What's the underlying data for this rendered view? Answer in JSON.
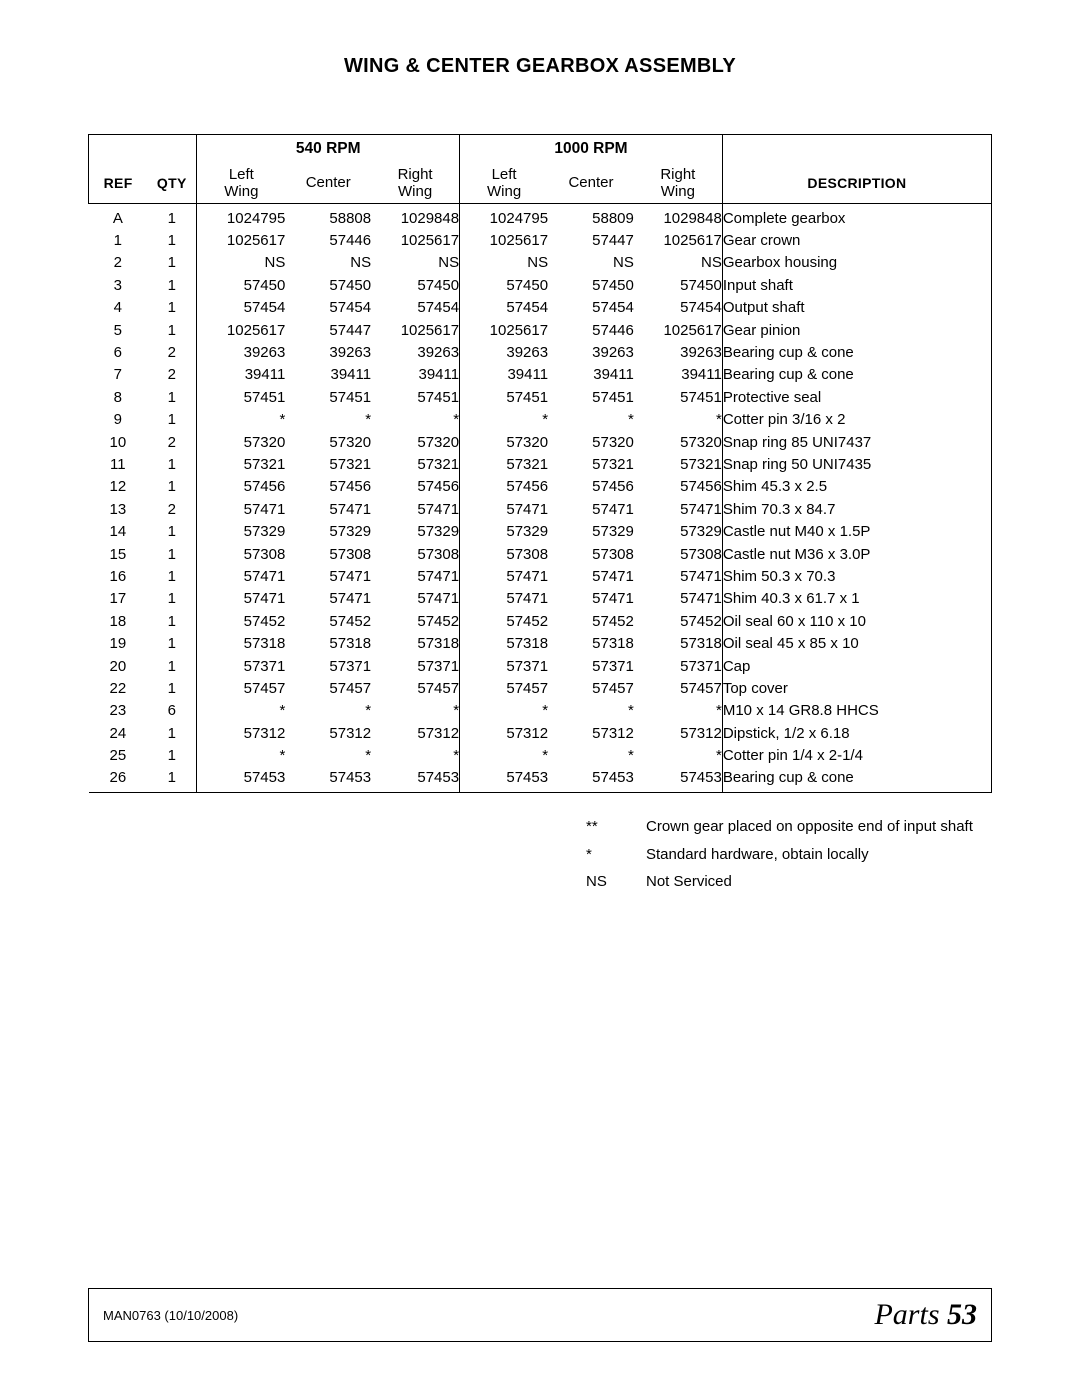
{
  "title": "WING & CENTER GEARBOX ASSEMBLY",
  "header": {
    "rpm540": "540 RPM",
    "rpm1000": "1000 RPM",
    "ref": "REF",
    "qty": "QTY",
    "leftWing": "Left\nWing",
    "center": "Center",
    "rightWing": "Right\nWing",
    "description": "DESCRIPTION"
  },
  "rows": [
    {
      "ref": "A",
      "qty": "1",
      "lw1": "1024795",
      "c1": "58808",
      "rw1": "1029848",
      "lw2": "1024795",
      "c2": "58809",
      "rw2": "1029848",
      "desc": "Complete gearbox"
    },
    {
      "ref": "1",
      "qty": "1",
      "lw1": "1025617",
      "c1": "57446",
      "rw1": "1025617",
      "lw2": "1025617",
      "c2": "57447",
      "rw2": "1025617",
      "desc": "Gear crown"
    },
    {
      "ref": "2",
      "qty": "1",
      "lw1": "NS",
      "c1": "NS",
      "rw1": "NS",
      "lw2": "NS",
      "c2": "NS",
      "rw2": "NS",
      "desc": "Gearbox housing"
    },
    {
      "ref": "3",
      "qty": "1",
      "lw1": "57450",
      "c1": "57450",
      "rw1": "57450",
      "lw2": "57450",
      "c2": "57450",
      "rw2": "57450",
      "desc": "Input shaft"
    },
    {
      "ref": "4",
      "qty": "1",
      "lw1": "57454",
      "c1": "57454",
      "rw1": "57454",
      "lw2": "57454",
      "c2": "57454",
      "rw2": "57454",
      "desc": "Output shaft"
    },
    {
      "ref": "5",
      "qty": "1",
      "lw1": "1025617",
      "c1": "57447",
      "rw1": "1025617",
      "lw2": "1025617",
      "c2": "57446",
      "rw2": "1025617",
      "desc": "Gear pinion"
    },
    {
      "ref": "6",
      "qty": "2",
      "lw1": "39263",
      "c1": "39263",
      "rw1": "39263",
      "lw2": "39263",
      "c2": "39263",
      "rw2": "39263",
      "desc": "Bearing cup & cone"
    },
    {
      "ref": "7",
      "qty": "2",
      "lw1": "39411",
      "c1": "39411",
      "rw1": "39411",
      "lw2": "39411",
      "c2": "39411",
      "rw2": "39411",
      "desc": "Bearing cup & cone"
    },
    {
      "ref": "8",
      "qty": "1",
      "lw1": "57451",
      "c1": "57451",
      "rw1": "57451",
      "lw2": "57451",
      "c2": "57451",
      "rw2": "57451",
      "desc": "Protective seal"
    },
    {
      "ref": "9",
      "qty": "1",
      "lw1": "*",
      "c1": "*",
      "rw1": "*",
      "lw2": "*",
      "c2": "*",
      "rw2": "*",
      "desc": "Cotter pin 3/16 x 2"
    },
    {
      "ref": "10",
      "qty": "2",
      "lw1": "57320",
      "c1": "57320",
      "rw1": "57320",
      "lw2": "57320",
      "c2": "57320",
      "rw2": "57320",
      "desc": "Snap ring 85 UNI7437"
    },
    {
      "ref": "11",
      "qty": "1",
      "lw1": "57321",
      "c1": "57321",
      "rw1": "57321",
      "lw2": "57321",
      "c2": "57321",
      "rw2": "57321",
      "desc": "Snap ring 50 UNI7435"
    },
    {
      "ref": "12",
      "qty": "1",
      "lw1": "57456",
      "c1": "57456",
      "rw1": "57456",
      "lw2": "57456",
      "c2": "57456",
      "rw2": "57456",
      "desc": "Shim 45.3 x 2.5"
    },
    {
      "ref": "13",
      "qty": "2",
      "lw1": "57471",
      "c1": "57471",
      "rw1": "57471",
      "lw2": "57471",
      "c2": "57471",
      "rw2": "57471",
      "desc": "Shim 70.3 x 84.7"
    },
    {
      "ref": "14",
      "qty": "1",
      "lw1": "57329",
      "c1": "57329",
      "rw1": "57329",
      "lw2": "57329",
      "c2": "57329",
      "rw2": "57329",
      "desc": "Castle nut M40 x 1.5P"
    },
    {
      "ref": "15",
      "qty": "1",
      "lw1": "57308",
      "c1": "57308",
      "rw1": "57308",
      "lw2": "57308",
      "c2": "57308",
      "rw2": "57308",
      "desc": "Castle nut M36 x 3.0P"
    },
    {
      "ref": "16",
      "qty": "1",
      "lw1": "57471",
      "c1": "57471",
      "rw1": "57471",
      "lw2": "57471",
      "c2": "57471",
      "rw2": "57471",
      "desc": "Shim 50.3 x 70.3"
    },
    {
      "ref": "17",
      "qty": "1",
      "lw1": "57471",
      "c1": "57471",
      "rw1": "57471",
      "lw2": "57471",
      "c2": "57471",
      "rw2": "57471",
      "desc": "Shim 40.3 x 61.7 x 1"
    },
    {
      "ref": "18",
      "qty": "1",
      "lw1": "57452",
      "c1": "57452",
      "rw1": "57452",
      "lw2": "57452",
      "c2": "57452",
      "rw2": "57452",
      "desc": "Oil seal 60 x 110 x 10"
    },
    {
      "ref": "19",
      "qty": "1",
      "lw1": "57318",
      "c1": "57318",
      "rw1": "57318",
      "lw2": "57318",
      "c2": "57318",
      "rw2": "57318",
      "desc": "Oil seal 45 x 85 x 10"
    },
    {
      "ref": "20",
      "qty": "1",
      "lw1": "57371",
      "c1": "57371",
      "rw1": "57371",
      "lw2": "57371",
      "c2": "57371",
      "rw2": "57371",
      "desc": "Cap"
    },
    {
      "ref": "22",
      "qty": "1",
      "lw1": "57457",
      "c1": "57457",
      "rw1": "57457",
      "lw2": "57457",
      "c2": "57457",
      "rw2": "57457",
      "desc": "Top cover"
    },
    {
      "ref": "23",
      "qty": "6",
      "lw1": "*",
      "c1": "*",
      "rw1": "*",
      "lw2": "*",
      "c2": "*",
      "rw2": "*",
      "desc": "M10 x 14 GR8.8 HHCS"
    },
    {
      "ref": "24",
      "qty": "1",
      "lw1": "57312",
      "c1": "57312",
      "rw1": "57312",
      "lw2": "57312",
      "c2": "57312",
      "rw2": "57312",
      "desc": "Dipstick, 1/2 x 6.18"
    },
    {
      "ref": "25",
      "qty": "1",
      "lw1": "*",
      "c1": "*",
      "rw1": "*",
      "lw2": "*",
      "c2": "*",
      "rw2": "*",
      "desc": "Cotter pin 1/4 x 2-1/4"
    },
    {
      "ref": "26",
      "qty": "1",
      "lw1": "57453",
      "c1": "57453",
      "rw1": "57453",
      "lw2": "57453",
      "c2": "57453",
      "rw2": "57453",
      "desc": "Bearing cup & cone"
    }
  ],
  "legend": [
    {
      "key": "**",
      "text": "Crown gear placed on opposite end of input shaft"
    },
    {
      "key": "*",
      "text": "Standard hardware, obtain locally"
    },
    {
      "key": "NS",
      "text": "Not Serviced"
    }
  ],
  "footer": {
    "left": "MAN0763 (10/10/2008)",
    "rightLabel": "Parts",
    "rightPage": "53"
  }
}
